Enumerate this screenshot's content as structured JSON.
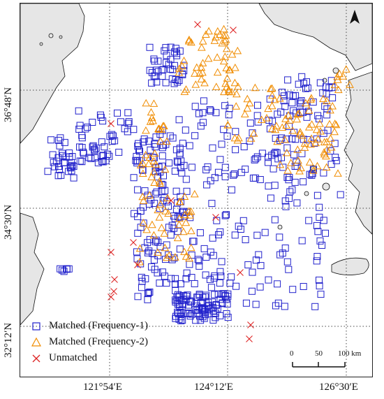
{
  "map": {
    "longitude_labels": [
      "121°54′E",
      "124°12′E",
      "126°30′E"
    ],
    "latitude_labels": [
      "36°48′N",
      "34°30′N",
      "32°12′N"
    ],
    "grid": "dotted",
    "land_color": "#e6e6e6",
    "coastline_color": "#111111"
  },
  "legend": {
    "items": [
      {
        "label": "Matched (Frequency-1)",
        "symbol": "square",
        "color": "#2222cc"
      },
      {
        "label": "Matched (Frequency-2)",
        "symbol": "triangle",
        "color": "#f08c00"
      },
      {
        "label": "Unmatched",
        "symbol": "cross",
        "color": "#dd2222"
      }
    ]
  },
  "scale_bar": {
    "ticks": [
      "0",
      "50",
      "100 km"
    ]
  },
  "north_arrow": {
    "icon": "north-arrow-icon"
  }
}
